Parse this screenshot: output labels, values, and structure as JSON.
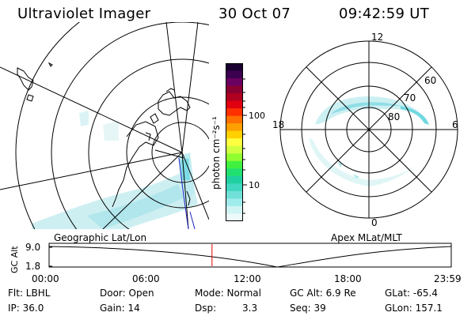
{
  "header": {
    "instrument": "Ultraviolet Imager",
    "date": "30 Oct 07",
    "time": "09:42:59 UT"
  },
  "geo_map": {
    "label": "Geographic Lat/Lon"
  },
  "polar_map": {
    "label": "Apex MLat/MLT",
    "mlt_labels": [
      "12",
      "18",
      "6",
      "0"
    ],
    "lat_labels": [
      "60",
      "70",
      "80"
    ]
  },
  "colorbar": {
    "unit_label": "photon cm⁻²s⁻¹",
    "ticks": [
      "100",
      "10"
    ],
    "colors": [
      "#1a0030",
      "#3b0050",
      "#6a0060",
      "#8a0030",
      "#b00020",
      "#e00010",
      "#ff3000",
      "#ff7000",
      "#ffa000",
      "#ffd000",
      "#ffff40",
      "#d0ff40",
      "#90ff30",
      "#40f040",
      "#20e070",
      "#20d0a0",
      "#40d8c0",
      "#70e0d8",
      "#a0ecec",
      "#d0f4f4",
      "#ecfafa"
    ]
  },
  "altitude_track": {
    "axis_label": "GC Alt",
    "y_ticks": [
      "9.0",
      "1.8"
    ],
    "x_ticks": [
      "00:00",
      "06:00",
      "12:00",
      "18:00",
      "23:59"
    ],
    "current_marker_time": "09:42:59",
    "marker_color": "#e00000"
  },
  "info": {
    "flt": "Flt: LBHL",
    "door": "Door: Open",
    "mode": "Mode: Normal",
    "gc_alt": "GC Alt: 6.9 Re",
    "glat": "GLat: -65.4",
    "ip": "IP: 36.0",
    "gain": "Gain: 14",
    "dsp_label": "Dsp:",
    "dsp_value": "3.3",
    "seq": "Seq: 39",
    "glon": "GLon: 157.1"
  }
}
